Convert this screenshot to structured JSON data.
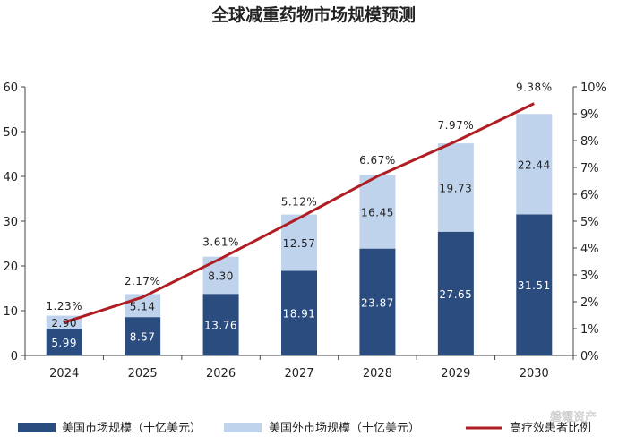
{
  "colors": {
    "us": "#2b4c7e",
    "intl": "#bfd3ec",
    "line": "#b01e23",
    "axis": "#444444"
  },
  "chart_data": {
    "type": "bar",
    "stacked": true,
    "title": "全球减重药物市场规模预测",
    "categories": [
      "2024",
      "2025",
      "2026",
      "2027",
      "2028",
      "2029",
      "2030"
    ],
    "series": [
      {
        "name": "美国市场规模（十亿美元）",
        "kind": "bar",
        "axis": "left",
        "values": [
          5.99,
          8.57,
          13.76,
          18.91,
          23.87,
          27.65,
          31.51
        ],
        "labels": [
          "5.99",
          "8.57",
          "13.76",
          "18.91",
          "23.87",
          "27.65",
          "31.51"
        ]
      },
      {
        "name": "美国外市场规模（十亿美元）",
        "kind": "bar",
        "axis": "left",
        "values": [
          2.9,
          5.14,
          8.3,
          12.57,
          16.45,
          19.73,
          22.44
        ],
        "labels": [
          "2.90",
          "5.14",
          "8.30",
          "12.57",
          "16.45",
          "19.73",
          "22.44"
        ]
      },
      {
        "name": "高疗效患者比例",
        "kind": "line",
        "axis": "right",
        "values": [
          1.23,
          2.17,
          3.61,
          5.12,
          6.67,
          7.97,
          9.38
        ],
        "labels": [
          "1.23%",
          "2.17%",
          "3.61%",
          "5.12%",
          "6.67%",
          "7.97%",
          "9.38%"
        ]
      }
    ],
    "ylim_left": [
      0,
      60
    ],
    "yticks_left": [
      "0",
      "10",
      "20",
      "30",
      "40",
      "50",
      "60"
    ],
    "ylim_right": [
      0,
      10
    ],
    "yticks_right": [
      "0%",
      "1%",
      "2%",
      "3%",
      "4%",
      "5%",
      "6%",
      "7%",
      "8%",
      "9%",
      "10%"
    ],
    "grid": false,
    "legend_position": "bottom"
  },
  "watermark": "磐耀资产"
}
